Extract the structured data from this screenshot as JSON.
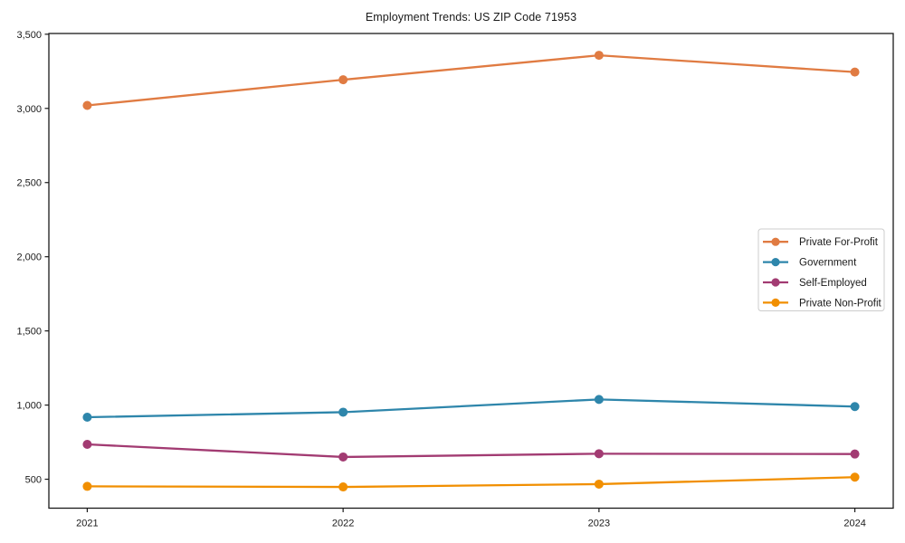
{
  "chart_data": {
    "type": "line",
    "title": "Employment Trends: US ZIP Code 71953",
    "xlabel": "",
    "ylabel": "",
    "x": [
      2021,
      2022,
      2023,
      2024
    ],
    "xtick_labels": [
      "2021",
      "2022",
      "2023",
      "2024"
    ],
    "yticks": [
      500,
      1000,
      1500,
      2000,
      2500,
      3000,
      3500
    ],
    "ytick_labels": [
      "500",
      "1,000",
      "1,500",
      "2,000",
      "2,500",
      "3,000",
      "3,500"
    ],
    "xlim": [
      2020.85,
      2024.15
    ],
    "ylim": [
      305,
      3505
    ],
    "grid": false,
    "legend_position": "center-right",
    "axis_color": "#1a1a1a",
    "background_color": "#ffffff",
    "series": [
      {
        "name": "Private For-Profit",
        "color": "#e07b42",
        "values": [
          3020,
          3193,
          3358,
          3245
        ]
      },
      {
        "name": "Government",
        "color": "#2e86ab",
        "values": [
          918,
          952,
          1038,
          990
        ]
      },
      {
        "name": "Self-Employed",
        "color": "#a23b72",
        "values": [
          735,
          650,
          672,
          670
        ]
      },
      {
        "name": "Private Non-Profit",
        "color": "#f18f01",
        "values": [
          452,
          448,
          467,
          514
        ]
      }
    ]
  }
}
